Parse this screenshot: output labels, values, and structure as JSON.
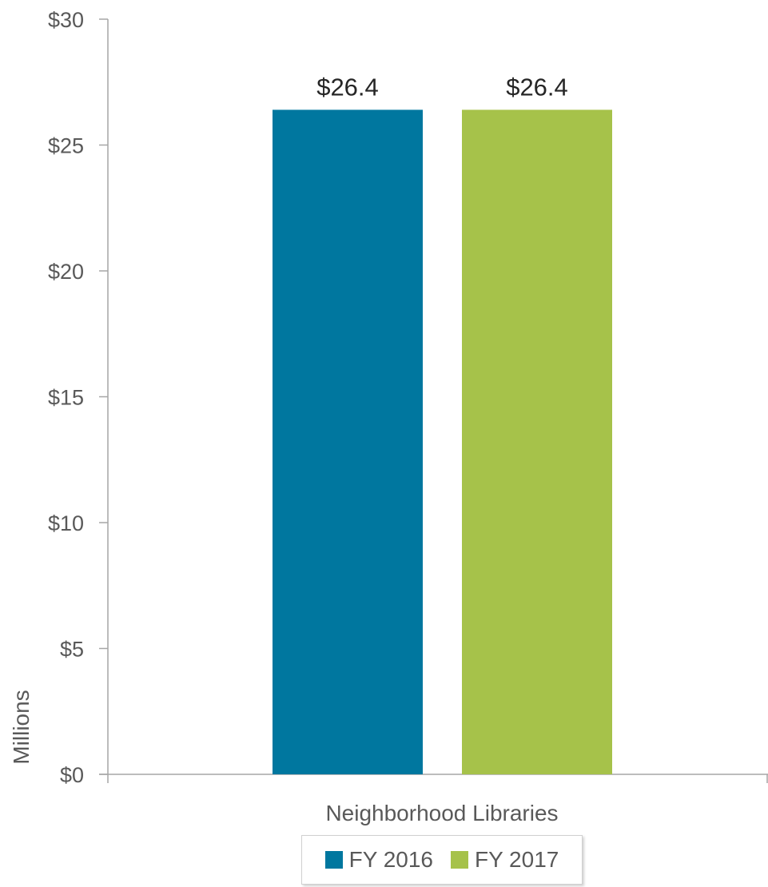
{
  "chart_data": {
    "type": "bar",
    "categories": [
      "Neighborhood Libraries"
    ],
    "series": [
      {
        "name": "FY 2016",
        "values": [
          26.4
        ],
        "color": "#00779f",
        "label": "$26.4"
      },
      {
        "name": "FY 2017",
        "values": [
          26.4
        ],
        "color": "#a6c24a",
        "label": "$26.4"
      }
    ],
    "ylabel": "Millions",
    "ylim": [
      0,
      30
    ],
    "yticks": [
      0,
      5,
      10,
      15,
      20,
      25,
      30
    ],
    "ytick_labels": [
      "$0",
      "$5",
      "$10",
      "$15",
      "$20",
      "$25",
      "$30"
    ],
    "legend_position": "bottom",
    "grid": false
  }
}
